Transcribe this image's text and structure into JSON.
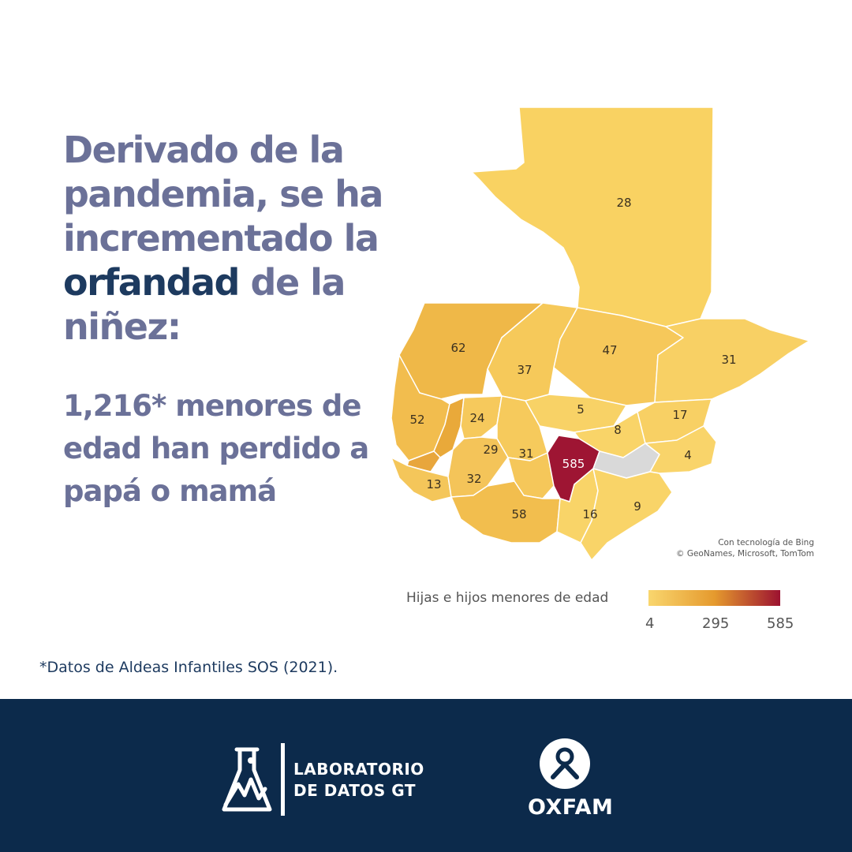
{
  "headline": {
    "part1": "Derivado de la pandemia, se ha incrementado la ",
    "highlight": "orfandad",
    "part2": " de la niñez:"
  },
  "subhead": "1,216* menores de edad han perdido a papá o mamá",
  "map": {
    "departments": [
      {
        "value": "28"
      },
      {
        "value": "62"
      },
      {
        "value": "37"
      },
      {
        "value": "47"
      },
      {
        "value": "31"
      },
      {
        "value": "52"
      },
      {
        "value": "24"
      },
      {
        "value": "5"
      },
      {
        "value": "17"
      },
      {
        "value": "8"
      },
      {
        "value": "29"
      },
      {
        "value": "31"
      },
      {
        "value": "585"
      },
      {
        "value": "4"
      },
      {
        "value": "13"
      },
      {
        "value": "32"
      },
      {
        "value": "58"
      },
      {
        "value": "16"
      },
      {
        "value": "9"
      }
    ],
    "credit_line1": "Con tecnología de Bing",
    "credit_line2": "© GeoNames, Microsoft, TomTom",
    "colors": {
      "low": "#f9d66e",
      "mid": "#e59a2e",
      "high": "#9c1230",
      "nodata": "#d9d9d9"
    }
  },
  "legend": {
    "title": "Hijas e hijos menores de edad",
    "min": "4",
    "mid": "295",
    "max": "585"
  },
  "footnote": "*Datos de Aldeas Infantiles SOS (2021).",
  "footer": {
    "lab_line1": "LABORATORIO",
    "lab_line2": "DE DATOS GT",
    "oxfam": "OXFAM",
    "lab_icon": "flask-icon",
    "oxfam_icon": "oxfam-icon"
  }
}
